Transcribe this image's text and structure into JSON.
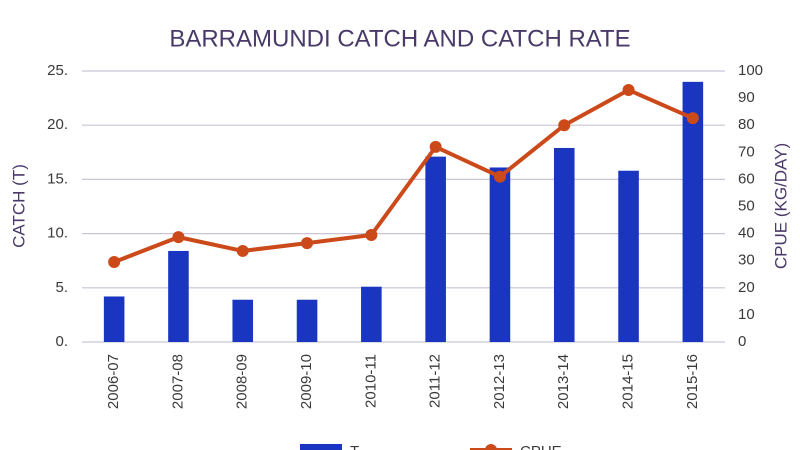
{
  "chart_data": {
    "type": "bar",
    "title": "BARRAMUNDI CATCH AND CATCH RATE",
    "y_label": "CATCH (T)",
    "y2_label": "CPUE (KG/DAY)",
    "categories": [
      "2006-07",
      "2007-08",
      "2008-09",
      "2009-10",
      "2010-11",
      "2011-12",
      "2012-13",
      "2013-14",
      "2014-15",
      "2015-16"
    ],
    "series": [
      {
        "name": "T",
        "type": "bar",
        "color": "#1a35c0",
        "values": [
          4.2,
          8.4,
          3.9,
          3.9,
          5.1,
          17.1,
          16.1,
          17.9,
          15.8,
          24.0
        ]
      },
      {
        "name": "CPUE",
        "type": "line",
        "axis": "y2",
        "color": "#cc4a1a",
        "values": [
          29.5,
          38.7,
          33.6,
          36.5,
          39.5,
          72,
          61,
          80,
          93,
          82.6
        ]
      }
    ],
    "ylim": [
      0,
      25
    ],
    "yticks": [
      {
        "value": 0,
        "label": "0."
      },
      {
        "value": 5,
        "label": "5."
      },
      {
        "value": 10,
        "label": "10."
      },
      {
        "value": 15,
        "label": "15."
      },
      {
        "value": 20,
        "label": "20."
      },
      {
        "value": 25,
        "label": "25."
      }
    ],
    "y2lim": [
      0,
      100
    ],
    "y2ticks": [
      0,
      10,
      20,
      30,
      40,
      50,
      60,
      70,
      80,
      90,
      100
    ],
    "grid": true
  }
}
